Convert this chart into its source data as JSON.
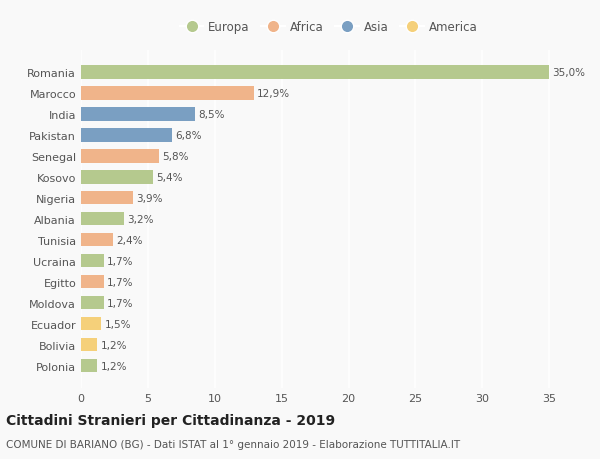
{
  "countries": [
    "Romania",
    "Marocco",
    "India",
    "Pakistan",
    "Senegal",
    "Kosovo",
    "Nigeria",
    "Albania",
    "Tunisia",
    "Ucraina",
    "Egitto",
    "Moldova",
    "Ecuador",
    "Bolivia",
    "Polonia"
  ],
  "values": [
    35.0,
    12.9,
    8.5,
    6.8,
    5.8,
    5.4,
    3.9,
    3.2,
    2.4,
    1.7,
    1.7,
    1.7,
    1.5,
    1.2,
    1.2
  ],
  "labels": [
    "35,0%",
    "12,9%",
    "8,5%",
    "6,8%",
    "5,8%",
    "5,4%",
    "3,9%",
    "3,2%",
    "2,4%",
    "1,7%",
    "1,7%",
    "1,7%",
    "1,5%",
    "1,2%",
    "1,2%"
  ],
  "continents": [
    "Europa",
    "Africa",
    "Asia",
    "Asia",
    "Africa",
    "Europa",
    "Africa",
    "Europa",
    "Africa",
    "Europa",
    "Africa",
    "Europa",
    "America",
    "America",
    "Europa"
  ],
  "continent_colors": {
    "Europa": "#b5c98e",
    "Africa": "#f0b48a",
    "Asia": "#7a9fc2",
    "America": "#f5d07a"
  },
  "legend_order": [
    "Europa",
    "Africa",
    "Asia",
    "America"
  ],
  "title": "Cittadini Stranieri per Cittadinanza - 2019",
  "subtitle": "COMUNE DI BARIANO (BG) - Dati ISTAT al 1° gennaio 2019 - Elaborazione TUTTITALIA.IT",
  "xlim": [
    0,
    37
  ],
  "xticks": [
    0,
    5,
    10,
    15,
    20,
    25,
    30,
    35
  ],
  "background_color": "#f9f9f9",
  "grid_color": "#ffffff",
  "bar_height": 0.65,
  "title_fontsize": 10,
  "subtitle_fontsize": 7.5,
  "tick_fontsize": 8,
  "label_fontsize": 7.5,
  "legend_fontsize": 8.5
}
